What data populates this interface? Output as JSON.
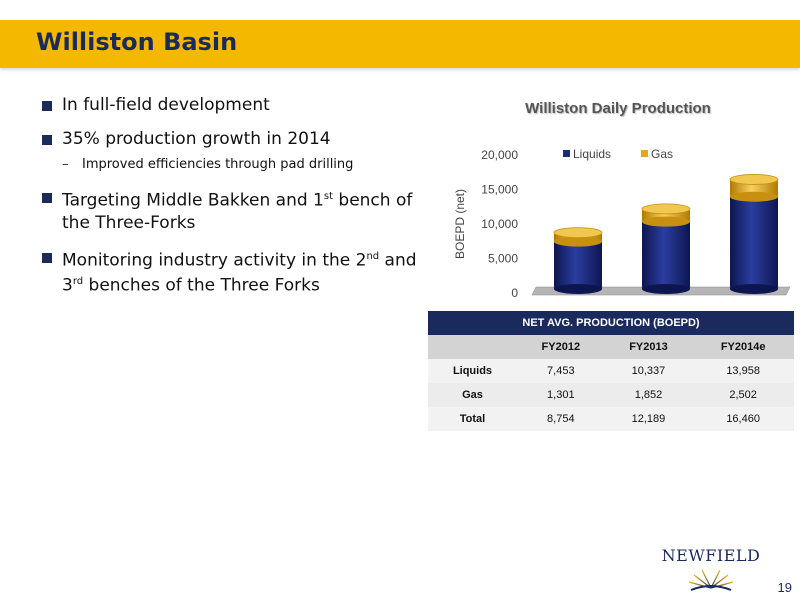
{
  "slide": {
    "title": "Williston Basin",
    "page_number": "19"
  },
  "bullets": [
    {
      "text": "In full-field development"
    },
    {
      "text": "35% production growth in 2014"
    },
    {
      "sub": "Improved efficiencies through pad drilling"
    },
    {
      "text_pre": "Targeting Middle Bakken and 1",
      "sup": "st",
      "text_post": " bench of the Three-Forks"
    },
    {
      "text_pre": "Monitoring industry activity in the 2",
      "sup": "nd",
      "text_mid": " and 3",
      "sup2": "rd",
      "text_post": " benches of the Three Forks"
    }
  ],
  "chart_data": {
    "type": "bar",
    "stacked": true,
    "title": "Williston Daily Production",
    "ylabel": "BOEPD (net)",
    "xlabel": "",
    "categories": [
      "",
      "",
      ""
    ],
    "ylim": [
      0,
      20000
    ],
    "yticks": [
      "0",
      "5,000",
      "10,000",
      "15,000",
      "20,000"
    ],
    "series": [
      {
        "name": "Liquids",
        "values": [
          7453,
          10337,
          13958
        ],
        "color": "#1b2a7a"
      },
      {
        "name": "Gas",
        "values": [
          1301,
          1852,
          2502
        ],
        "color": "#e0a820"
      }
    ],
    "legend": "top"
  },
  "table": {
    "header": "NET AVG. PRODUCTION  (BOEPD)",
    "columns": [
      "",
      "FY2012",
      "FY2013",
      "FY2014e"
    ],
    "rows": [
      {
        "label": "Liquids",
        "values": [
          "7,453",
          "10,337",
          "13,958"
        ]
      },
      {
        "label": "Gas",
        "values": [
          "1,301",
          "1,852",
          "2,502"
        ]
      },
      {
        "label": "Total",
        "values": [
          "8,754",
          "12,189",
          "16,460"
        ]
      }
    ]
  },
  "logo": {
    "text": "NEWFIELD"
  },
  "colors": {
    "accent": "#f5b800",
    "navy": "#1b2a5c"
  }
}
